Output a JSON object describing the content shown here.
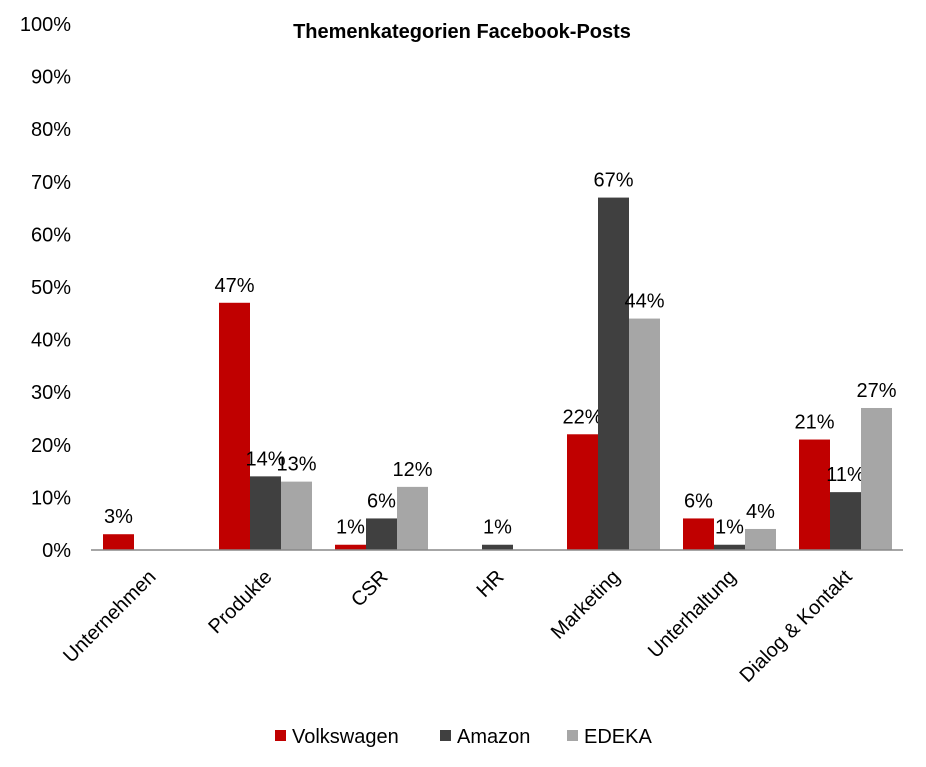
{
  "chart_data": {
    "type": "bar",
    "title": "Themenkategorien Facebook-Posts",
    "xlabel": "",
    "ylabel": "",
    "ylim": [
      0,
      100
    ],
    "yticks": [
      "0%",
      "10%",
      "20%",
      "30%",
      "40%",
      "50%",
      "60%",
      "70%",
      "80%",
      "90%",
      "100%"
    ],
    "categories": [
      "Unternehmen",
      "Produkte",
      "CSR",
      "HR",
      "Marketing",
      "Unterhaltung",
      "Dialog & Kontakt"
    ],
    "series": [
      {
        "name": "Volkswagen",
        "color": "#c00000",
        "values": [
          3,
          47,
          1,
          0,
          22,
          6,
          21
        ]
      },
      {
        "name": "Amazon",
        "color": "#404040",
        "values": [
          0,
          14,
          6,
          1,
          67,
          1,
          11
        ]
      },
      {
        "name": "EDEKA",
        "color": "#a6a6a6",
        "values": [
          0,
          13,
          12,
          0,
          44,
          4,
          27
        ]
      }
    ],
    "grid": false,
    "legend": "bottom"
  }
}
